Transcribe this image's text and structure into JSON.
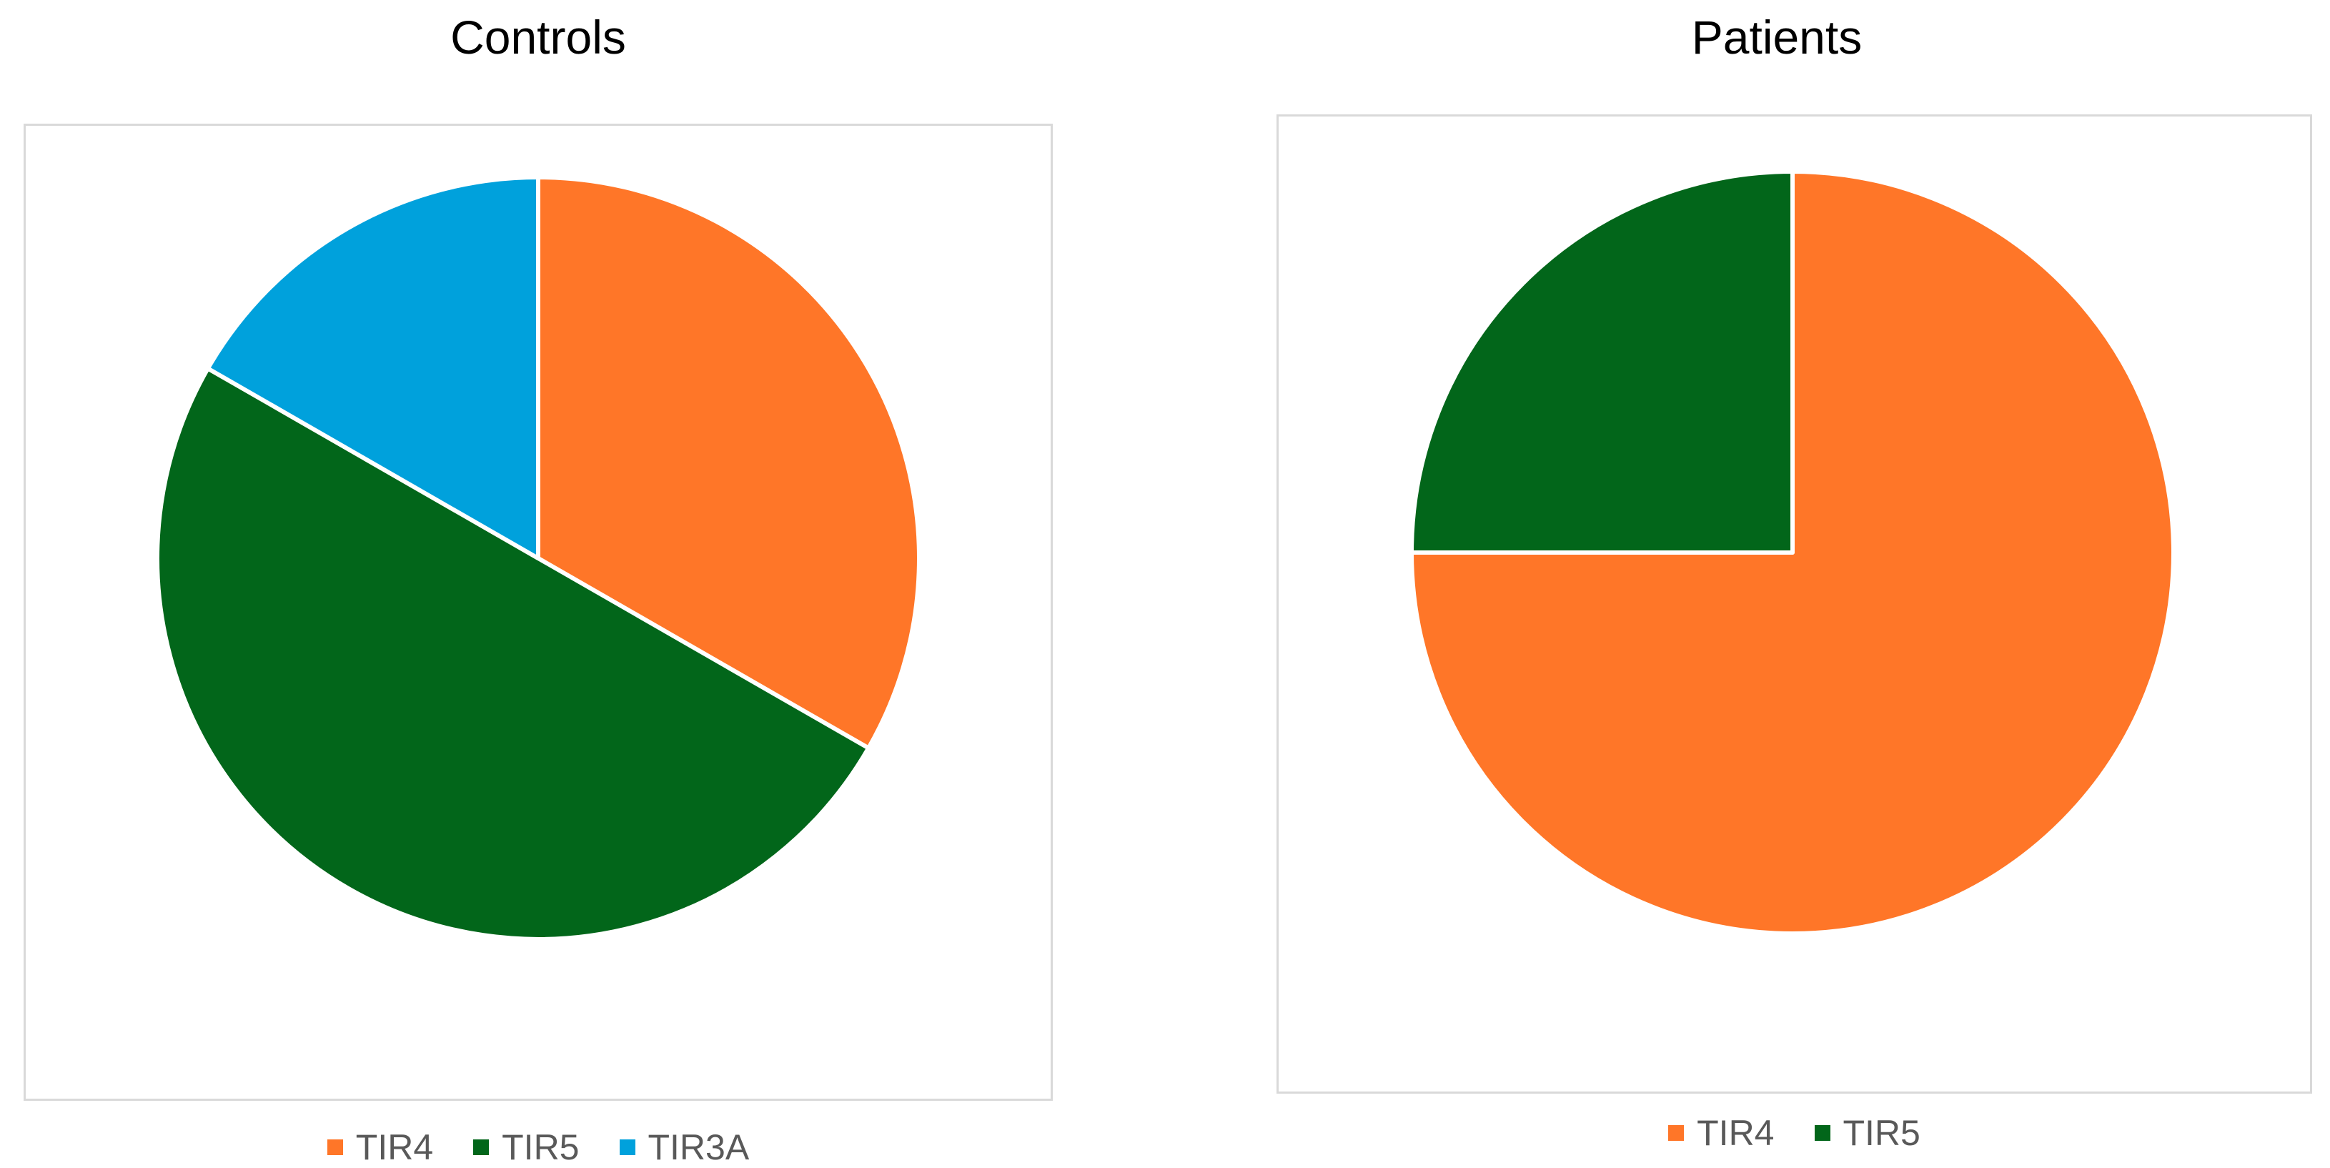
{
  "chart_data": [
    {
      "type": "pie",
      "title": "Controls",
      "categories": [
        "TIR4",
        "TIR5",
        "TIR3A"
      ],
      "values": [
        33.3,
        50.0,
        16.7
      ],
      "colors": [
        "#ff7628",
        "#02661a",
        "#00a1dc"
      ],
      "legend_position": "bottom",
      "start_angle": "12 o'clock",
      "direction": "clockwise"
    },
    {
      "type": "pie",
      "title": "Patients",
      "categories": [
        "TIR4",
        "TIR5"
      ],
      "values": [
        75.0,
        25.0
      ],
      "colors": [
        "#ff7628",
        "#02661a"
      ],
      "legend_position": "bottom",
      "start_angle": "12 o'clock",
      "direction": "clockwise"
    }
  ]
}
